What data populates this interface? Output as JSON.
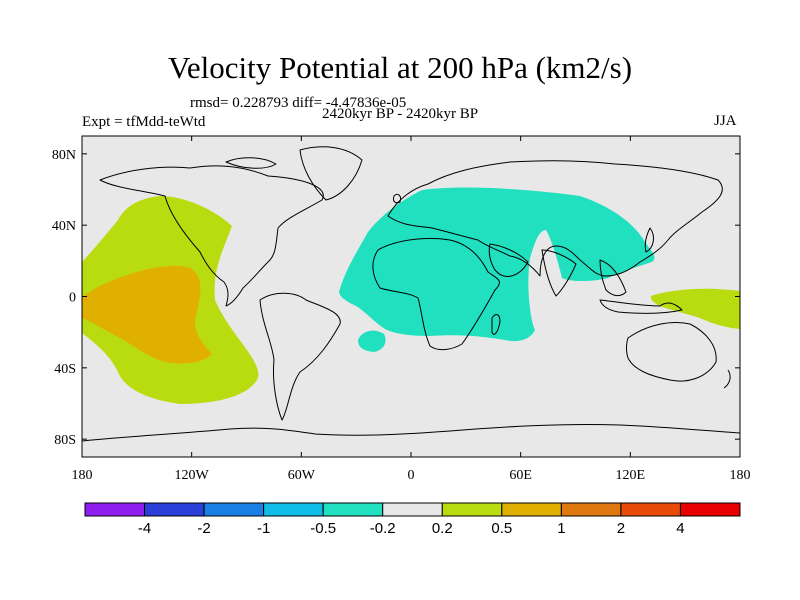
{
  "title": "Velocity Potential at 200 hPa (km2/s)",
  "stats_line": "rmsd= 0.228793 diff= -4.47836e-05",
  "experiment": "Expt = tfMdd-teWtd",
  "period": "2420kyr BP - 2420kyr BP",
  "season": "JJA",
  "map": {
    "projection": "cylindrical equidistant",
    "lon_range": [
      -180,
      180
    ],
    "lat_range": [
      -90,
      90
    ],
    "x_ticks": [
      {
        "lon": -180,
        "label": "180"
      },
      {
        "lon": -120,
        "label": "120W"
      },
      {
        "lon": -60,
        "label": "60W"
      },
      {
        "lon": 0,
        "label": "0"
      },
      {
        "lon": 60,
        "label": "60E"
      },
      {
        "lon": 120,
        "label": "120E"
      },
      {
        "lon": 180,
        "label": "180"
      }
    ],
    "y_ticks": [
      {
        "lat": 80,
        "label": "80N"
      },
      {
        "lat": 40,
        "label": "40N"
      },
      {
        "lat": 0,
        "label": "0"
      },
      {
        "lat": -40,
        "label": "40S"
      },
      {
        "lat": -80,
        "label": "80S"
      }
    ],
    "background_color": "#e8e8e8",
    "coastline_color": "#000000"
  },
  "colorbar": {
    "colors": [
      "#8f1ef0",
      "#2a3fd8",
      "#1a7fe6",
      "#10bde6",
      "#20e0c0",
      "#e8e8e8",
      "#b8dc10",
      "#e0b000",
      "#e07810",
      "#e84a08",
      "#e80000"
    ],
    "labels": [
      "-4",
      "-2",
      "-1",
      "-0.5",
      "-0.2",
      "0.2",
      "0.5",
      "1",
      "2",
      "4"
    ]
  },
  "fields": [
    {
      "name": "pacific-positive-outer",
      "level": "0.2 to 0.5",
      "color": "#b8dc10"
    },
    {
      "name": "pacific-positive-inner",
      "level": "0.5 to 1",
      "color": "#e0b000"
    },
    {
      "name": "afro-eurasian-negative",
      "level": "-0.5 to -0.2",
      "color": "#20e0c0"
    },
    {
      "name": "west-pacific-positive",
      "level": "0.2 to 0.5",
      "color": "#b8dc10"
    }
  ]
}
